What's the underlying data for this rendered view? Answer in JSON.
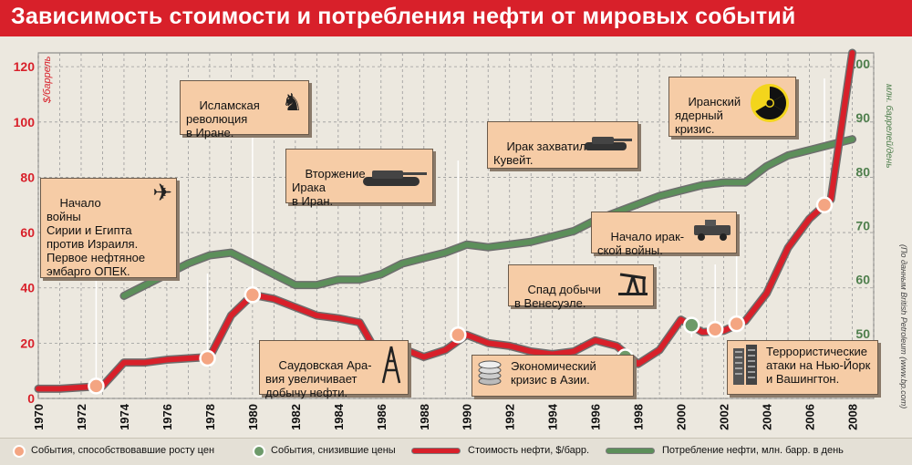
{
  "title": "Зависимость стоимости и потребления нефти от мировых событий",
  "left_axis_unit": "$/баррель",
  "right_axis_unit": "млн. баррелей/день",
  "source_note": "(По данным British Petroleum (www.bp.com)",
  "colors": {
    "title_bar": "#d8202a",
    "price_line": "#d8202a",
    "consumption_line": "#5c8f5a",
    "rise_event": "#f4a582",
    "fall_event": "#6d9a6a",
    "callout_bg": "#f6cca6"
  },
  "callouts": [
    {
      "text": "Начало\nвойны\nСирии и Египта\nпротив Израиля.\nПервое нефтяное\nэмбарго ОПЕК.",
      "icon": "airplane-icon"
    },
    {
      "text": "Исламская\nреволюция\nв Иране.",
      "icon": "soldier-icon"
    },
    {
      "text": "Вторжение\nИрака\nв Иран.",
      "icon": "tank-icon"
    },
    {
      "text": "Саудовская Ара-\nвия увеличивает\nдобычу нефти.",
      "icon": "oil-derrick-icon"
    },
    {
      "text": "Ирак захватил\nКувейт.",
      "icon": "tank-icon"
    },
    {
      "text": "Экономический\nкризис в Азии.",
      "icon": "coins-icon"
    },
    {
      "text": "Спад добычи\nв Венесуэле.",
      "icon": "oil-pump-icon"
    },
    {
      "text": "Начало ирак-\nской войны.",
      "icon": "humvee-icon"
    },
    {
      "text": "Иранский\nядерный\nкризис.",
      "icon": "radiation-icon"
    },
    {
      "text": "Террористические\nатаки на Нью-Йорк\nи Вашингтон.",
      "icon": "skyscrapers-icon"
    }
  ],
  "legend": {
    "rise": "События, способствовавшие росту цен",
    "fall": "События, снизившие цены",
    "price": "Стоимость нефти, $/барр.",
    "consumption": "Потребление нефти, млн. барр. в день"
  },
  "chart_data": {
    "type": "line",
    "x_ticks": [
      "1970",
      "1972",
      "1974",
      "1976",
      "1978",
      "1980",
      "1982",
      "1984",
      "1986",
      "1988",
      "1990",
      "1992",
      "1994",
      "1996",
      "1998",
      "2000",
      "2002",
      "2004",
      "2006",
      "2008"
    ],
    "xlim": [
      1970,
      2009
    ],
    "left_axis": {
      "unit": "$/баррель",
      "ylim": [
        0,
        125
      ],
      "ticks": [
        "0",
        "20",
        "40",
        "60",
        "80",
        "100",
        "120"
      ]
    },
    "right_axis": {
      "unit": "млн. баррелей/день",
      "ylim": [
        38,
        102
      ],
      "ticks": [
        "50",
        "60",
        "70",
        "80",
        "90",
        "100"
      ]
    },
    "grid": true,
    "legend_position": "bottom",
    "series": [
      {
        "name": "Стоимость нефти, $/барр.",
        "axis": "left",
        "x": [
          1970,
          1971,
          1972,
          1973,
          1974,
          1975,
          1976,
          1977,
          1978,
          1979,
          1980,
          1981,
          1982,
          1983,
          1984,
          1985,
          1986,
          1987,
          1988,
          1989,
          1990,
          1991,
          1992,
          1993,
          1994,
          1995,
          1996,
          1997,
          1998,
          1999,
          2000,
          2001,
          2002,
          2003,
          2004,
          2005,
          2006,
          2007,
          2008
        ],
        "values": [
          3.5,
          3.5,
          4,
          4.5,
          13,
          13,
          14,
          14.5,
          15,
          30,
          37.5,
          36,
          33,
          30,
          29,
          27.5,
          14,
          18,
          15,
          17.5,
          23,
          20,
          19,
          17,
          16,
          17,
          21,
          19,
          12.5,
          17.5,
          28.5,
          24,
          24.5,
          28,
          38,
          54.5,
          65,
          72,
          125
        ]
      },
      {
        "name": "Потребление нефти, млн. барр. в день",
        "axis": "right",
        "x": [
          1974,
          1975,
          1976,
          1977,
          1978,
          1979,
          1980,
          1981,
          1982,
          1983,
          1984,
          1985,
          1986,
          1987,
          1988,
          1989,
          1990,
          1991,
          1992,
          1993,
          1994,
          1995,
          1996,
          1997,
          1998,
          1999,
          2000,
          2001,
          2002,
          2003,
          2004,
          2005,
          2006,
          2007,
          2008
        ],
        "values": [
          57,
          59,
          61,
          63,
          64.5,
          65,
          63,
          61,
          59,
          59,
          60,
          60,
          61,
          63,
          64,
          65,
          66.5,
          66,
          66.5,
          67,
          68,
          69,
          71,
          72.5,
          74,
          75.5,
          76.5,
          77.5,
          78,
          78,
          81,
          83,
          84,
          85,
          86
        ]
      }
    ],
    "events_rise": [
      {
        "x": 1972.7,
        "y": 4.5
      },
      {
        "x": 1977.9,
        "y": 14.5
      },
      {
        "x": 1980.0,
        "y": 37.5
      },
      {
        "x": 1989.6,
        "y": 23
      },
      {
        "x": 2001.6,
        "y": 25
      },
      {
        "x": 2002.6,
        "y": 27
      },
      {
        "x": 2006.7,
        "y": 70
      }
    ],
    "events_fall": [
      {
        "x": 1985.9,
        "y": 18
      },
      {
        "x": 1997.4,
        "y": 15
      },
      {
        "x": 2000.5,
        "y": 26.5
      }
    ]
  }
}
